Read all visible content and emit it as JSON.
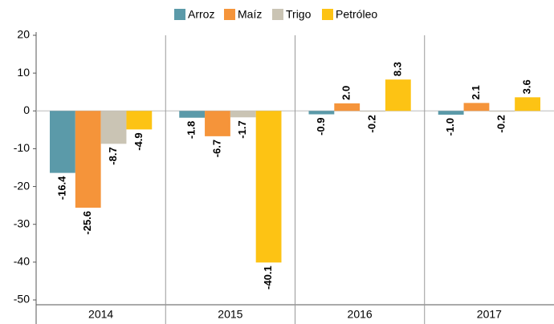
{
  "chart_data": {
    "type": "bar",
    "categories": [
      "2014",
      "2015",
      "2016",
      "2017"
    ],
    "series": [
      {
        "name": "Arroz",
        "color": "#5b9aa9",
        "values": [
          -16.4,
          -1.8,
          -0.9,
          -1.0
        ],
        "value_labels": [
          "-16.4",
          "-1.8",
          "-0.9",
          "-1.0"
        ]
      },
      {
        "name": "Maíz",
        "color": "#f5943a",
        "values": [
          -25.6,
          -6.7,
          2.0,
          2.1
        ],
        "value_labels": [
          "-25.6",
          "-6.7",
          "2.0",
          "2.1"
        ]
      },
      {
        "name": "Trigo",
        "color": "#cac4b4",
        "values": [
          -8.7,
          -1.7,
          -0.2,
          -0.2
        ],
        "value_labels": [
          "-8.7",
          "-1.7",
          "-0.2",
          "-0.2"
        ]
      },
      {
        "name": "Petróleo",
        "color": "#fdc314",
        "values": [
          -4.9,
          -40.1,
          8.3,
          3.6
        ],
        "value_labels": [
          "-4.9",
          "-40.1",
          "8.3",
          "3.6"
        ]
      }
    ],
    "ylim": [
      -50,
      20
    ],
    "yticks": [
      -50,
      -40,
      -30,
      -20,
      -10,
      0,
      10,
      20
    ],
    "legend": "top"
  }
}
